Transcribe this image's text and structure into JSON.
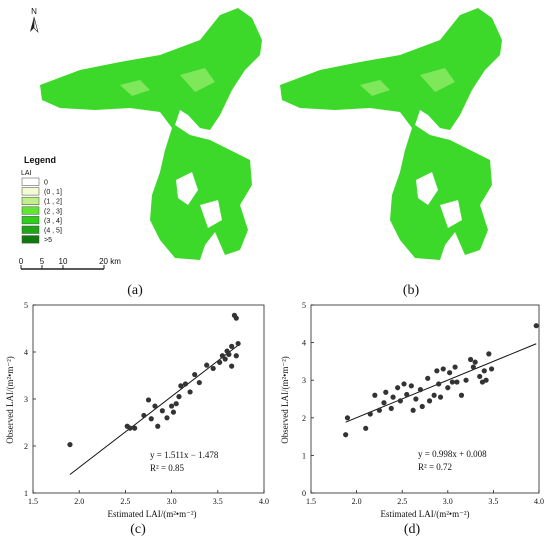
{
  "maps": {
    "north_label": "N",
    "legend": {
      "title": "Legend",
      "subtitle": "LAI",
      "items": [
        {
          "label": "0",
          "color": "#ffffff"
        },
        {
          "label": "(0 , 1]",
          "color": "#f3fbd2"
        },
        {
          "label": "(1 , 2]",
          "color": "#bff08a"
        },
        {
          "label": "(2 , 3]",
          "color": "#62e636"
        },
        {
          "label": "(3 , 4]",
          "color": "#2fcf1c"
        },
        {
          "label": "(4 , 5]",
          "color": "#1ea614"
        },
        {
          "label": ">5",
          "color": "#0f7a0c"
        }
      ]
    },
    "scale": {
      "ticks": [
        "0",
        "5",
        "10",
        "20 km"
      ]
    },
    "fill_color": "#3cd92a",
    "captions": {
      "a": "(a)",
      "b": "(b)"
    }
  },
  "chart_data": [
    {
      "type": "scatter",
      "panel": "(c)",
      "xlabel": "Estimated LAI/(m²•m⁻²)",
      "ylabel": "Observed LAI/(m²•m⁻²)",
      "xlim": [
        1.5,
        4.0
      ],
      "ylim": [
        1,
        5
      ],
      "xticks": [
        "1.5",
        "2.0",
        "2.5",
        "3.0",
        "3.5",
        "4.0"
      ],
      "yticks": [
        "1",
        "2",
        "3",
        "4",
        "5"
      ],
      "equation": "y = 1.511x − 1.478",
      "r2": "R² = 0.85",
      "fit": {
        "slope": 1.511,
        "intercept": -1.478,
        "x_range": [
          1.9,
          3.72
        ]
      },
      "points": [
        [
          1.9,
          2.03
        ],
        [
          2.52,
          2.42
        ],
        [
          2.55,
          2.38
        ],
        [
          2.6,
          2.38
        ],
        [
          2.7,
          2.65
        ],
        [
          2.75,
          2.98
        ],
        [
          2.78,
          2.58
        ],
        [
          2.82,
          2.85
        ],
        [
          2.85,
          2.42
        ],
        [
          2.9,
          2.75
        ],
        [
          2.95,
          2.6
        ],
        [
          3.0,
          2.85
        ],
        [
          3.02,
          2.72
        ],
        [
          3.05,
          2.9
        ],
        [
          3.08,
          3.05
        ],
        [
          3.1,
          3.28
        ],
        [
          3.15,
          3.32
        ],
        [
          3.2,
          3.15
        ],
        [
          3.25,
          3.52
        ],
        [
          3.3,
          3.35
        ],
        [
          3.38,
          3.72
        ],
        [
          3.45,
          3.65
        ],
        [
          3.52,
          3.78
        ],
        [
          3.55,
          3.92
        ],
        [
          3.58,
          3.85
        ],
        [
          3.6,
          4.02
        ],
        [
          3.62,
          3.95
        ],
        [
          3.65,
          4.12
        ],
        [
          3.65,
          3.7
        ],
        [
          3.68,
          4.78
        ],
        [
          3.7,
          4.72
        ],
        [
          3.7,
          3.92
        ],
        [
          3.72,
          4.18
        ]
      ]
    },
    {
      "type": "scatter",
      "panel": "(d)",
      "xlabel": "Estimated LAI/(m²•m⁻²)",
      "ylabel": "Observed LAI/(m²•m⁻²)",
      "xlim": [
        1.5,
        4.0
      ],
      "ylim": [
        0,
        5
      ],
      "xticks": [
        "1.5",
        "2.0",
        "2.5",
        "3.0",
        "3.5",
        "4.0"
      ],
      "yticks": [
        "0",
        "1",
        "2",
        "3",
        "4",
        "5"
      ],
      "equation": "y = 0.998x + 0.008",
      "r2": "R² = 0.72",
      "fit": {
        "slope": 0.998,
        "intercept": 0.008,
        "x_range": [
          1.88,
          3.97
        ]
      },
      "points": [
        [
          1.88,
          1.55
        ],
        [
          1.9,
          2.0
        ],
        [
          2.1,
          1.72
        ],
        [
          2.15,
          2.1
        ],
        [
          2.2,
          2.6
        ],
        [
          2.25,
          2.2
        ],
        [
          2.3,
          2.4
        ],
        [
          2.32,
          2.68
        ],
        [
          2.38,
          2.25
        ],
        [
          2.4,
          2.55
        ],
        [
          2.45,
          2.8
        ],
        [
          2.48,
          2.45
        ],
        [
          2.52,
          2.9
        ],
        [
          2.55,
          2.62
        ],
        [
          2.6,
          2.85
        ],
        [
          2.62,
          2.2
        ],
        [
          2.65,
          2.5
        ],
        [
          2.7,
          2.75
        ],
        [
          2.72,
          2.3
        ],
        [
          2.78,
          3.05
        ],
        [
          2.8,
          2.45
        ],
        [
          2.85,
          2.6
        ],
        [
          2.88,
          3.25
        ],
        [
          2.9,
          2.9
        ],
        [
          2.92,
          2.55
        ],
        [
          2.95,
          3.3
        ],
        [
          3.0,
          2.8
        ],
        [
          3.02,
          3.2
        ],
        [
          3.05,
          2.95
        ],
        [
          3.08,
          3.35
        ],
        [
          3.1,
          2.95
        ],
        [
          3.15,
          2.6
        ],
        [
          3.2,
          3.0
        ],
        [
          3.25,
          3.55
        ],
        [
          3.28,
          3.35
        ],
        [
          3.3,
          3.48
        ],
        [
          3.35,
          3.1
        ],
        [
          3.38,
          2.95
        ],
        [
          3.4,
          3.25
        ],
        [
          3.42,
          3.0
        ],
        [
          3.45,
          3.7
        ],
        [
          3.48,
          3.3
        ],
        [
          3.97,
          4.45
        ]
      ]
    }
  ],
  "captions": {
    "c": "(c)",
    "d": "(d)"
  }
}
